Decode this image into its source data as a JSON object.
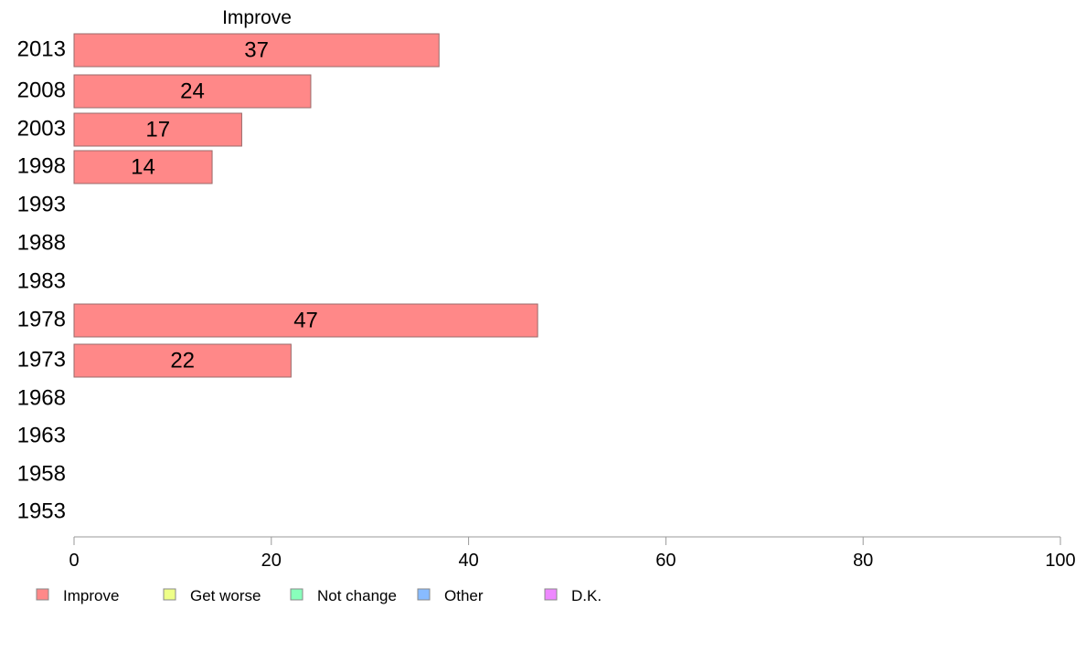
{
  "chart_data": {
    "type": "bar",
    "orientation": "horizontal",
    "title": "Improve",
    "categories": [
      "2013",
      "2008",
      "2003",
      "1998",
      "1993",
      "1988",
      "1983",
      "1978",
      "1973",
      "1968",
      "1963",
      "1958",
      "1953"
    ],
    "series": [
      {
        "name": "Improve",
        "color": "#ff8888",
        "values": [
          37,
          24,
          17,
          14,
          null,
          null,
          null,
          47,
          22,
          null,
          null,
          null,
          null
        ]
      }
    ],
    "xlim": [
      0,
      100
    ],
    "xticks": [
      0,
      20,
      40,
      60,
      80,
      100
    ],
    "grid": false,
    "legend": {
      "placement": "bottom-left",
      "items": [
        {
          "label": "Improve",
          "color": "#ff8888"
        },
        {
          "label": "Get worse",
          "color": "#eeff88"
        },
        {
          "label": "Not change",
          "color": "#88ffbb"
        },
        {
          "label": "Other",
          "color": "#88bbff"
        },
        {
          "label": "D.K.",
          "color": "#ee88ff"
        }
      ]
    }
  }
}
